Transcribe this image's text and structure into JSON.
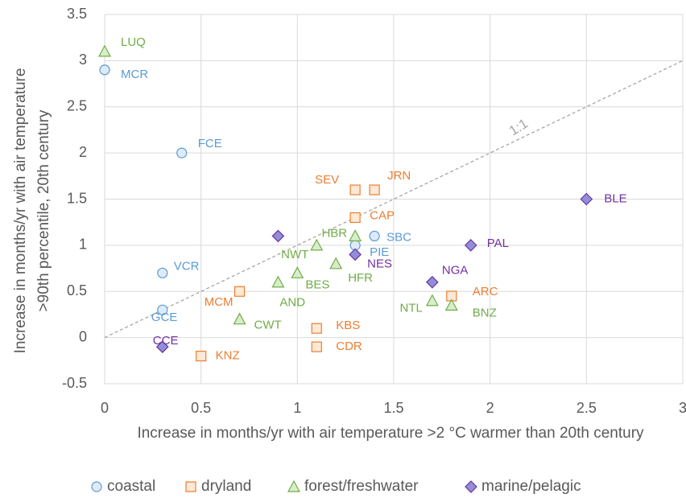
{
  "chart_data": {
    "type": "scatter",
    "x_label": "Increase in months/yr with air temperature >2 °C warmer than 20th century",
    "y_label": "Increase in months/yr with air temperature >90th percentile, 20th century",
    "xlim": [
      0,
      3
    ],
    "xticks": [
      0,
      0.5,
      1,
      1.5,
      2,
      2.5,
      3
    ],
    "ylim": [
      -0.5,
      3.5
    ],
    "yticks": [
      -0.5,
      0,
      0.5,
      1,
      1.5,
      2,
      2.5,
      3,
      3.5
    ],
    "grid": true,
    "legend": "bottom",
    "annotation": "1:1",
    "series": [
      {
        "name": "coastal",
        "marker": "circle",
        "color": "#5b9bd5",
        "fill": "#deebf7",
        "labels": [
          "MCR",
          "FCE",
          "VCR",
          "GCE",
          "SBC",
          "PIE"
        ],
        "x": [
          0,
          0.4,
          0.3,
          0.3,
          1.4,
          1.3
        ],
        "values": [
          2.9,
          2.0,
          0.7,
          0.3,
          1.1,
          1.0
        ]
      },
      {
        "name": "dryland",
        "marker": "square",
        "color": "#ed7d31",
        "fill": "#fde9d6",
        "labels": [
          "SEV",
          "JRN",
          "CAP",
          "MCM",
          "KNZ",
          "KBS",
          "CDR",
          "ARC"
        ],
        "x": [
          1.3,
          1.4,
          1.3,
          0.7,
          0.5,
          1.1,
          1.1,
          1.8
        ],
        "values": [
          1.6,
          1.6,
          1.3,
          0.5,
          -0.2,
          0.1,
          -0.1,
          0.45
        ]
      },
      {
        "name": "forest/freshwater",
        "marker": "triangle",
        "color": "#70ad47",
        "fill": "#d8edcc",
        "labels": [
          "LUQ",
          "HBR",
          "NWT",
          "HFR",
          "BES",
          "AND",
          "CWT",
          "NTL",
          "BNZ"
        ],
        "x": [
          0,
          1.3,
          1.1,
          1.2,
          1.0,
          0.9,
          0.7,
          1.7,
          1.8
        ],
        "values": [
          3.1,
          1.1,
          1.0,
          0.8,
          0.7,
          0.6,
          0.2,
          0.4,
          0.35
        ]
      },
      {
        "name": "marine/pelagic",
        "marker": "diamond",
        "color": "#7030a0",
        "fill": "#8f8fd9",
        "labels": [
          "BLE",
          "PAL",
          "NGA",
          "NES",
          "CCE",
          null
        ],
        "x": [
          2.5,
          1.9,
          1.7,
          1.3,
          0.3,
          0.9
        ],
        "values": [
          1.5,
          1.0,
          0.6,
          0.9,
          -0.1,
          1.1
        ]
      }
    ]
  }
}
